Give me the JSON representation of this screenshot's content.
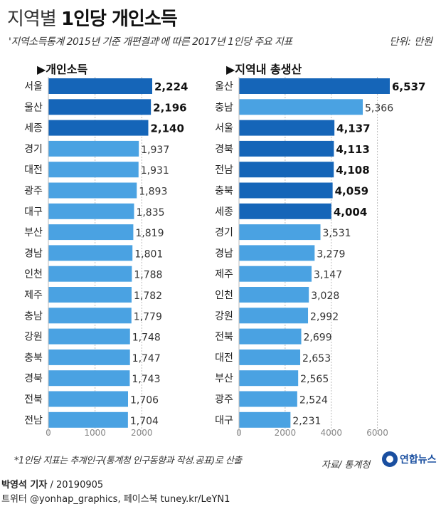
{
  "header": {
    "title_light": "지역별",
    "title_bold": "1인당 개인소득",
    "subtitle": "'지역소득통계 2015년 기준 개편결과'에 따른 2017년 1인당 주요 지표",
    "unit": "단위: 만원"
  },
  "chart_data": [
    {
      "type": "bar",
      "title": "▶개인소득",
      "categories": [
        "서울",
        "울산",
        "세종",
        "경기",
        "대전",
        "광주",
        "대구",
        "부산",
        "경남",
        "인천",
        "제주",
        "충남",
        "강원",
        "충북",
        "경북",
        "전북",
        "전남"
      ],
      "values": [
        2224,
        2196,
        2140,
        1937,
        1931,
        1893,
        1835,
        1819,
        1801,
        1788,
        1782,
        1779,
        1748,
        1747,
        1743,
        1706,
        1704
      ],
      "value_labels": [
        "2,224",
        "2,196",
        "2,140",
        "1,937",
        "1,931",
        "1,893",
        "1,835",
        "1,819",
        "1,801",
        "1,788",
        "1,782",
        "1,779",
        "1,748",
        "1,747",
        "1,743",
        "1,706",
        "1,704"
      ],
      "highlight": [
        true,
        true,
        true,
        false,
        false,
        false,
        false,
        false,
        false,
        false,
        false,
        false,
        false,
        false,
        false,
        false,
        false
      ],
      "xticks": [
        0,
        1000,
        2000
      ],
      "xtick_labels": [
        "0",
        "1000",
        "2000"
      ],
      "xlim": [
        0,
        2350
      ]
    },
    {
      "type": "bar",
      "title": "▶지역내 총생산",
      "categories": [
        "울산",
        "충남",
        "서울",
        "경북",
        "전남",
        "충북",
        "세종",
        "경기",
        "경남",
        "제주",
        "인천",
        "강원",
        "전북",
        "대전",
        "부산",
        "광주",
        "대구"
      ],
      "values": [
        6537,
        5366,
        4137,
        4113,
        4108,
        4059,
        4004,
        3531,
        3279,
        3147,
        3028,
        2992,
        2699,
        2653,
        2565,
        2524,
        2231
      ],
      "value_labels": [
        "6,537",
        "5,366",
        "4,137",
        "4,113",
        "4,108",
        "4,059",
        "4,004",
        "3,531",
        "3,279",
        "3,147",
        "3,028",
        "2,992",
        "2,699",
        "2,653",
        "2,565",
        "2,524",
        "2,231"
      ],
      "highlight": [
        true,
        false,
        true,
        true,
        true,
        true,
        true,
        false,
        false,
        false,
        false,
        false,
        false,
        false,
        false,
        false,
        false
      ],
      "xticks": [
        0,
        2000,
        4000,
        6000
      ],
      "xtick_labels": [
        "0",
        "2000",
        "4000",
        "6000"
      ],
      "xlim": [
        0,
        7000
      ]
    }
  ],
  "colors": {
    "highlight": "#1565b8",
    "normal": "#4aa2e2",
    "axis": "#bbbbbb",
    "bold_label": "#111111",
    "normal_label": "#333333"
  },
  "footer": {
    "footnote": "*1인당 지표는 추계인구(통계청 인구동향과 작성.공표)로 산출",
    "source": "자료/ 통계청",
    "logo_text": "연합뉴스",
    "reporter": "박영석 기자",
    "date": "/ 20190905",
    "social": "트위터 @yonhap_graphics, 페이스북 tuney.kr/LeYN1"
  }
}
